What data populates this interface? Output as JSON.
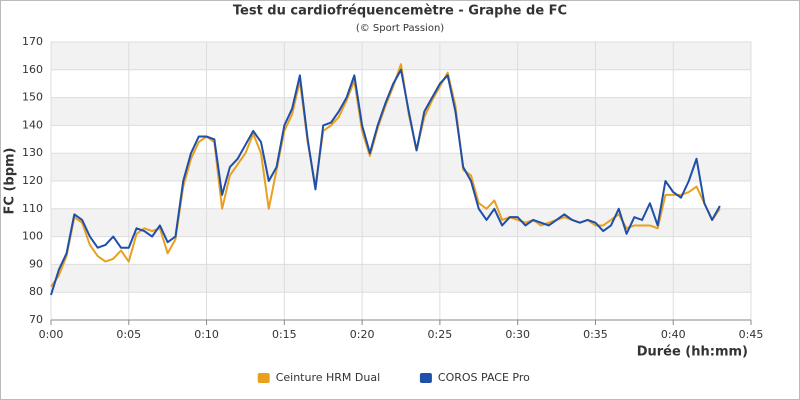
{
  "chart_data": {
    "type": "line",
    "title": "Test du cardiofréquencemètre - Graphe de FC",
    "subtitle": "(© Sport Passion)",
    "y_label": "FC (bpm)",
    "x_label": "Durée (hh:mm)",
    "x": [
      0,
      0.5,
      1,
      1.5,
      2,
      2.5,
      3,
      3.5,
      4,
      4.5,
      5,
      5.5,
      6,
      6.5,
      7,
      7.5,
      8,
      8.5,
      9,
      9.5,
      10,
      10.5,
      11,
      11.5,
      12,
      12.5,
      13,
      13.5,
      14,
      14.5,
      15,
      15.5,
      16,
      16.5,
      17,
      17.5,
      18,
      18.5,
      19,
      19.5,
      20,
      20.5,
      21,
      21.5,
      22,
      22.5,
      23,
      23.5,
      24,
      24.5,
      25,
      25.5,
      26,
      26.5,
      27,
      27.5,
      28,
      28.5,
      29,
      29.5,
      30,
      30.5,
      31,
      31.5,
      32,
      32.5,
      33,
      33.5,
      34,
      34.5,
      35,
      35.5,
      36,
      36.5,
      37,
      37.5,
      38,
      38.5,
      39,
      39.5,
      40,
      40.5,
      41,
      41.5,
      42,
      42.5,
      43
    ],
    "series": [
      {
        "name": "Ceinture HRM Dual",
        "color": "#e8a01e",
        "values": [
          82,
          86,
          93,
          107,
          105,
          97,
          93,
          91,
          92,
          95,
          91,
          101,
          103,
          102,
          103,
          94,
          99,
          118,
          128,
          134,
          136,
          134,
          110,
          122,
          126,
          130,
          137,
          130,
          110,
          124,
          138,
          144,
          156,
          134,
          118,
          138,
          140,
          143,
          149,
          156,
          138,
          129,
          139,
          147,
          154,
          162,
          144,
          131,
          143,
          149,
          154,
          159,
          147,
          124,
          122,
          112,
          110,
          113,
          106,
          107,
          106,
          105,
          106,
          104,
          105,
          106,
          107,
          106,
          105,
          106,
          104,
          104,
          106,
          108,
          103,
          104,
          104,
          104,
          103,
          115,
          115,
          115,
          116,
          118,
          112,
          106,
          110
        ]
      },
      {
        "name": "COROS PACE Pro",
        "color": "#1f4fa8",
        "values": [
          79,
          88,
          94,
          108,
          106,
          100,
          96,
          97,
          100,
          96,
          96,
          103,
          102,
          100,
          104,
          98,
          100,
          120,
          130,
          136,
          136,
          135,
          115,
          125,
          128,
          133,
          138,
          134,
          120,
          125,
          140,
          146,
          158,
          135,
          117,
          140,
          141,
          145,
          150,
          158,
          140,
          130,
          140,
          148,
          155,
          160,
          145,
          131,
          145,
          150,
          155,
          158,
          145,
          125,
          120,
          110,
          106,
          110,
          104,
          107,
          107,
          104,
          106,
          105,
          104,
          106,
          108,
          106,
          105,
          106,
          105,
          102,
          104,
          110,
          101,
          107,
          106,
          112,
          104,
          120,
          116,
          114,
          120,
          128,
          112,
          106,
          111
        ]
      }
    ],
    "xlim": [
      0,
      45
    ],
    "xticks": [
      {
        "value": 0,
        "label": "0:00"
      },
      {
        "value": 5,
        "label": "0:05"
      },
      {
        "value": 10,
        "label": "0:10"
      },
      {
        "value": 15,
        "label": "0:15"
      },
      {
        "value": 20,
        "label": "0:20"
      },
      {
        "value": 25,
        "label": "0:25"
      },
      {
        "value": 30,
        "label": "0:30"
      },
      {
        "value": 35,
        "label": "0:35"
      },
      {
        "value": 40,
        "label": "0:40"
      },
      {
        "value": 45,
        "label": "0:45"
      }
    ],
    "ylim": [
      70,
      170
    ],
    "yticks": [
      70,
      80,
      90,
      100,
      110,
      120,
      130,
      140,
      150,
      160,
      170
    ],
    "grid": true,
    "legend": "bottom"
  }
}
